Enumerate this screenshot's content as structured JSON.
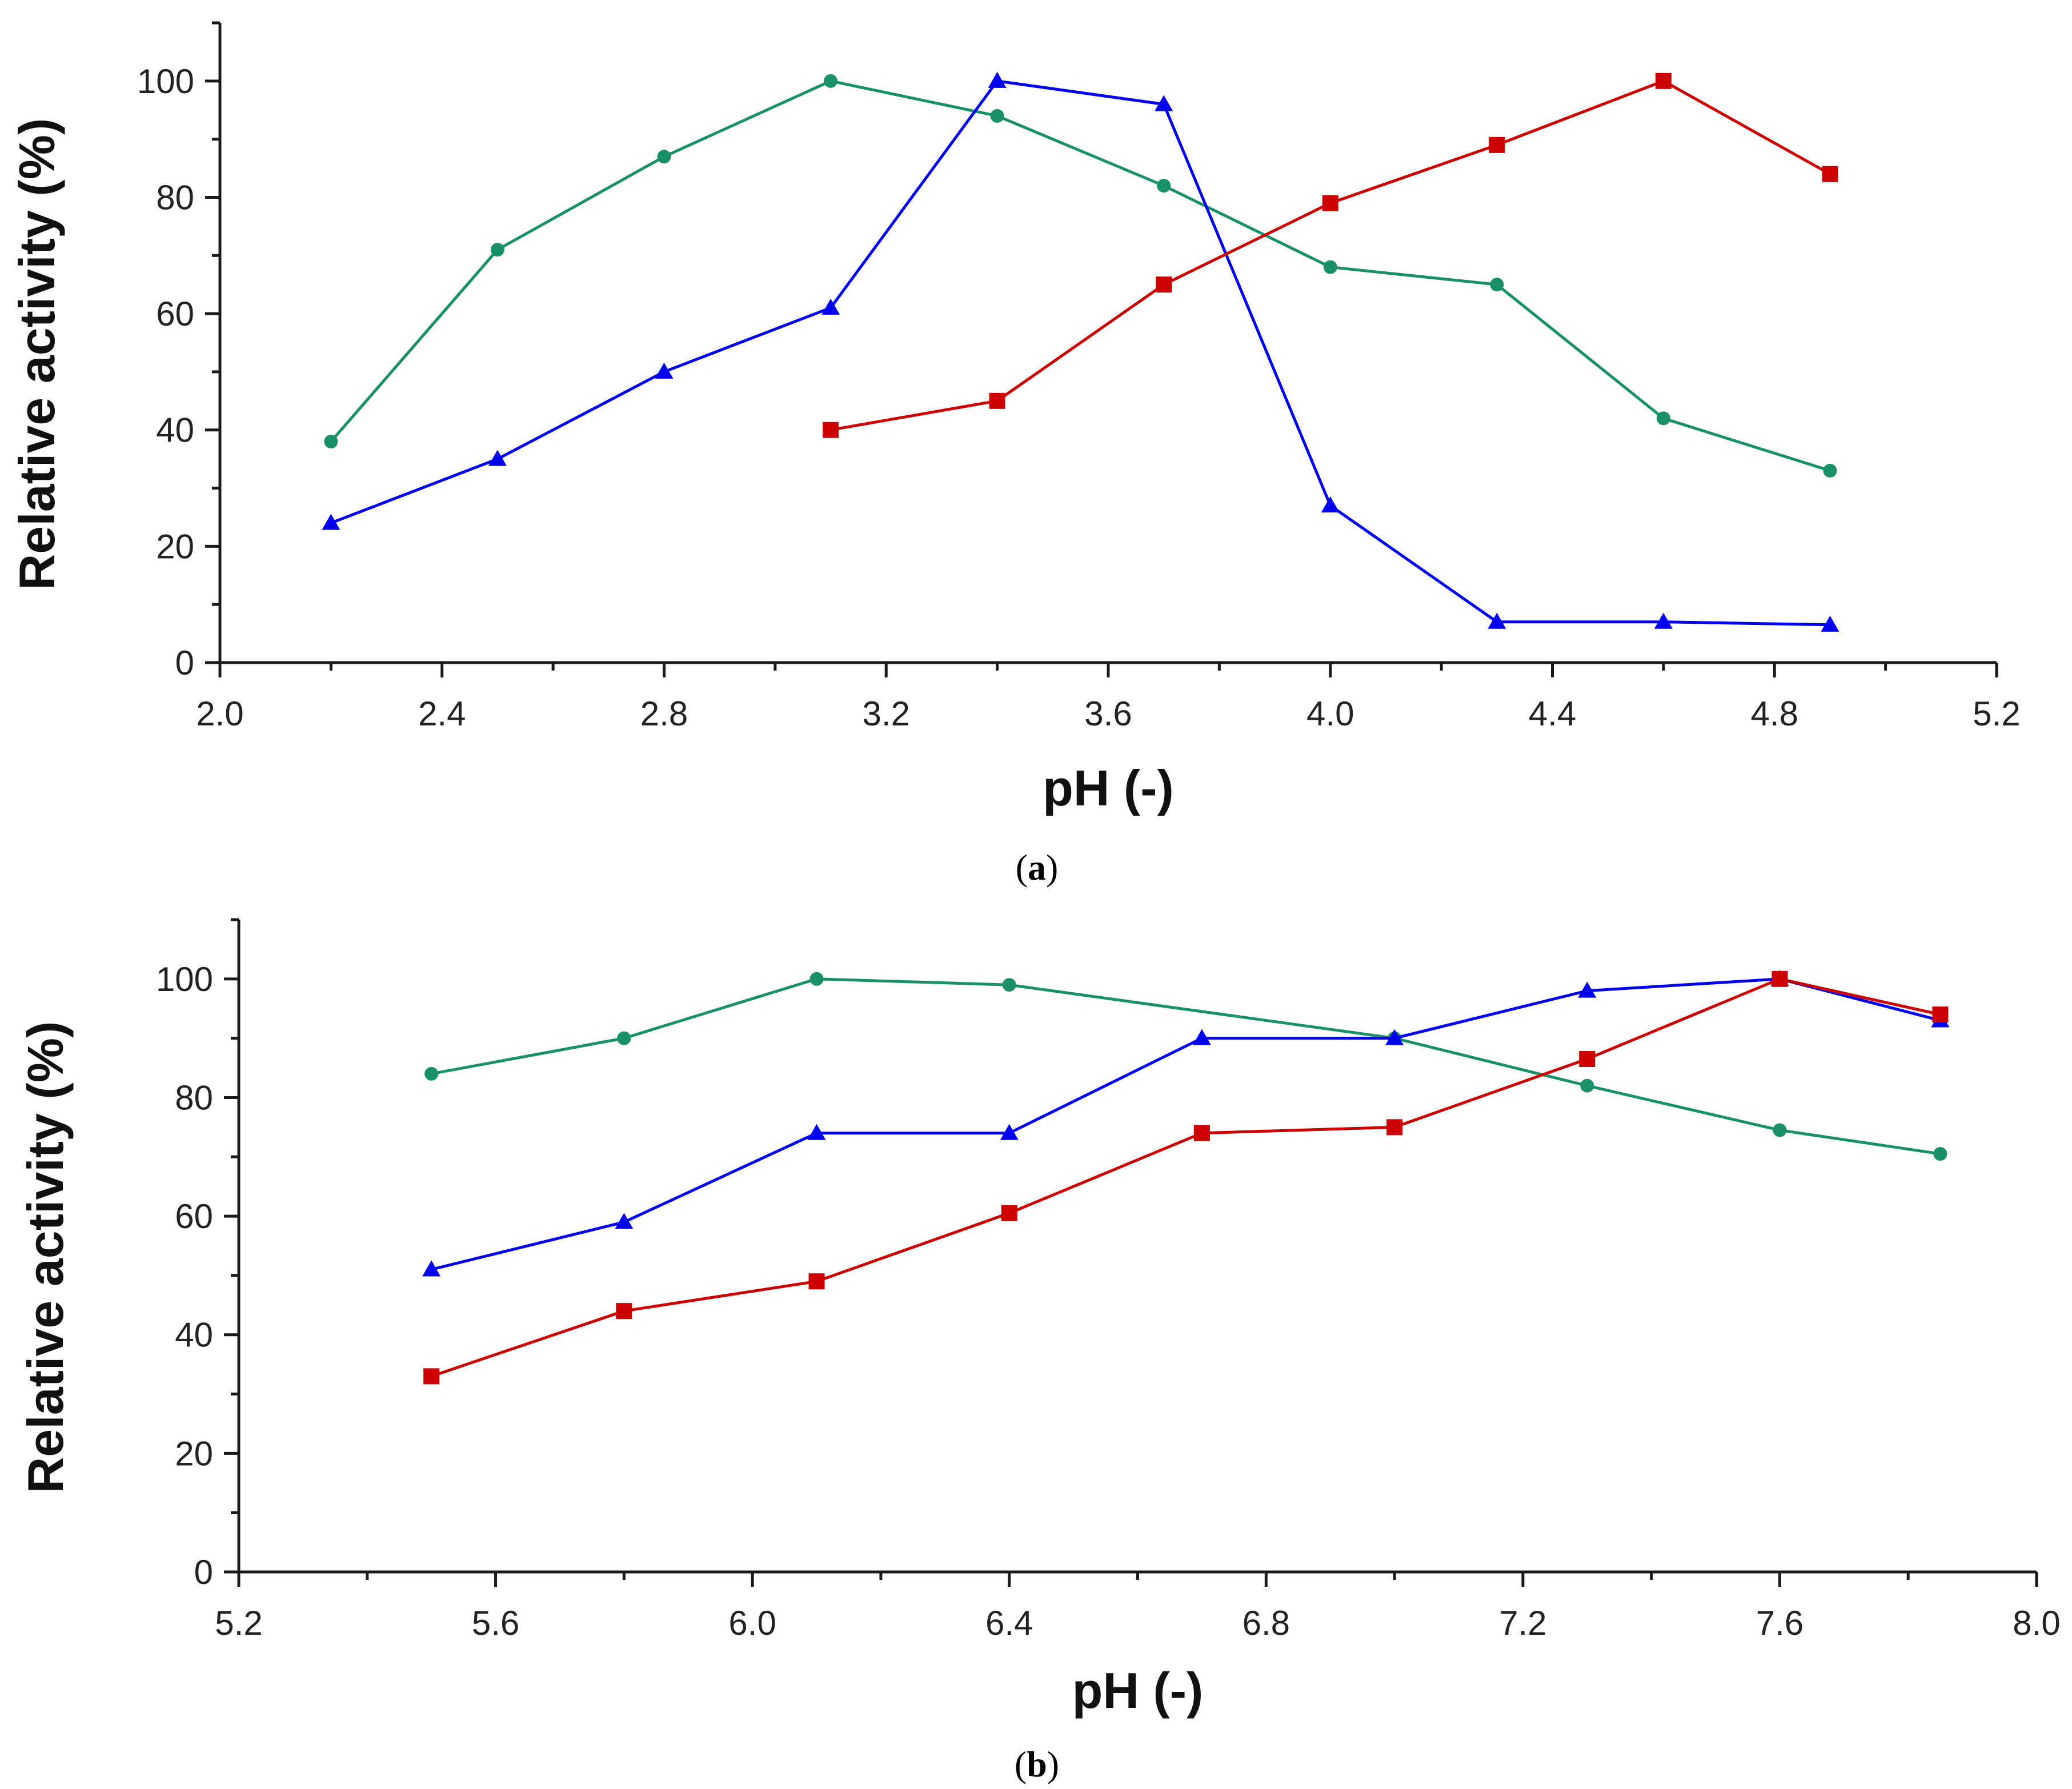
{
  "chart_data": [
    {
      "panel": "a",
      "caption_letter": "a",
      "type": "line",
      "title": "",
      "xlabel": "pH (-)",
      "ylabel": "Relative activity (%)",
      "xlim": [
        2.0,
        5.2
      ],
      "ylim": [
        0,
        110
      ],
      "xticks": [
        2.0,
        2.4,
        2.8,
        3.2,
        3.6,
        4.0,
        4.4,
        4.8,
        5.2
      ],
      "xtick_labels": [
        "2.0",
        "2.4",
        "2.8",
        "3.2",
        "3.6",
        "4.0",
        "4.4",
        "4.8",
        "5.2"
      ],
      "yticks": [
        0,
        20,
        40,
        60,
        80,
        100
      ],
      "ytick_labels": [
        "0",
        "20",
        "40",
        "60",
        "80",
        "100"
      ],
      "series": [
        {
          "name": "green-circle",
          "color": "#1a9068",
          "marker": "circle",
          "x": [
            2.2,
            2.5,
            2.8,
            3.1,
            3.4,
            3.7,
            4.0,
            4.3,
            4.6,
            4.9
          ],
          "values": [
            38,
            71,
            87,
            100,
            94,
            82,
            68,
            65,
            42,
            33
          ]
        },
        {
          "name": "blue-triangle",
          "color": "#0000ee",
          "marker": "triangle",
          "x": [
            2.2,
            2.5,
            2.8,
            3.1,
            3.4,
            3.7,
            4.0,
            4.3,
            4.6,
            4.9
          ],
          "values": [
            24,
            35,
            50,
            61,
            100,
            96,
            27,
            7,
            7,
            6.5
          ]
        },
        {
          "name": "red-square",
          "color": "#cc0000",
          "marker": "square",
          "x": [
            3.1,
            3.4,
            3.7,
            4.0,
            4.3,
            4.6,
            4.9
          ],
          "values": [
            40,
            45,
            65,
            79,
            89,
            100,
            84
          ]
        }
      ]
    },
    {
      "panel": "b",
      "caption_letter": "b",
      "type": "line",
      "title": "",
      "xlabel": "pH (-)",
      "ylabel": "Relative activity (%)",
      "xlim": [
        5.2,
        8.0
      ],
      "ylim": [
        0,
        110
      ],
      "xticks": [
        5.2,
        5.6,
        6.0,
        6.4,
        6.8,
        7.2,
        7.6,
        8.0
      ],
      "xtick_labels": [
        "5.2",
        "5.6",
        "6.0",
        "6.4",
        "6.8",
        "7.2",
        "7.6",
        "8.0"
      ],
      "yticks": [
        0,
        20,
        40,
        60,
        80,
        100
      ],
      "ytick_labels": [
        "0",
        "20",
        "40",
        "60",
        "80",
        "100"
      ],
      "series": [
        {
          "name": "green-circle",
          "color": "#1a9068",
          "marker": "circle",
          "x": [
            5.5,
            5.8,
            6.1,
            6.4,
            7.0,
            7.3,
            7.6,
            7.85
          ],
          "values": [
            84,
            90,
            100,
            99,
            90,
            82,
            74.5,
            70.5
          ]
        },
        {
          "name": "blue-triangle",
          "color": "#0000ee",
          "marker": "triangle",
          "x": [
            5.5,
            5.8,
            6.1,
            6.4,
            6.7,
            7.0,
            7.3,
            7.6,
            7.85
          ],
          "values": [
            51,
            59,
            74,
            74,
            90,
            90,
            98,
            100,
            93
          ]
        },
        {
          "name": "red-square",
          "color": "#cc0000",
          "marker": "square",
          "x": [
            5.5,
            5.8,
            6.1,
            6.4,
            6.7,
            7.0,
            7.3,
            7.6,
            7.85
          ],
          "values": [
            33,
            44,
            49,
            60.5,
            74,
            75,
            86.5,
            100,
            94
          ]
        }
      ]
    }
  ]
}
